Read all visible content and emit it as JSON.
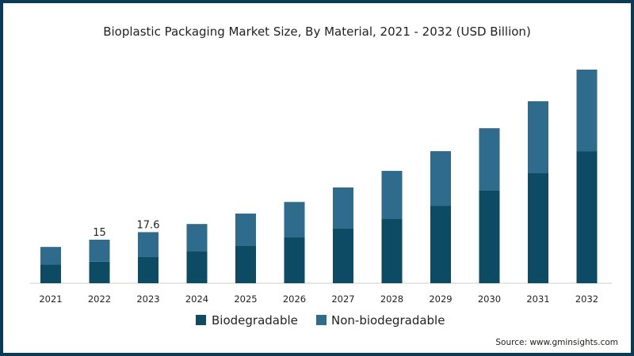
{
  "chart_data": {
    "type": "bar",
    "stacked": true,
    "title": "Bioplastic Packaging Market Size, By Material, 2021 - 2032 (USD Billion)",
    "xlabel": "",
    "ylabel": "",
    "categories": [
      "2021",
      "2022",
      "2023",
      "2024",
      "2025",
      "2026",
      "2027",
      "2028",
      "2029",
      "2030",
      "2031",
      "2032"
    ],
    "series": [
      {
        "name": "Biodegradable",
        "color": "#0d4a63",
        "values": [
          6.5,
          7.4,
          9.0,
          11.1,
          13.0,
          15.8,
          18.8,
          22.3,
          26.7,
          31.9,
          38.1,
          45.5
        ]
      },
      {
        "name": "Non-biodegradable",
        "color": "#2f6b8c",
        "values": [
          6.0,
          7.6,
          8.6,
          9.3,
          11.0,
          12.2,
          14.2,
          16.4,
          18.8,
          21.5,
          24.6,
          28.1
        ]
      }
    ],
    "data_labels": [
      {
        "category": "2022",
        "text": "15"
      },
      {
        "category": "2023",
        "text": "17.6"
      }
    ],
    "ylim": [
      0,
      75
    ],
    "grid": false,
    "legend": "bottom",
    "source": "Source: www.gminsights.com"
  }
}
